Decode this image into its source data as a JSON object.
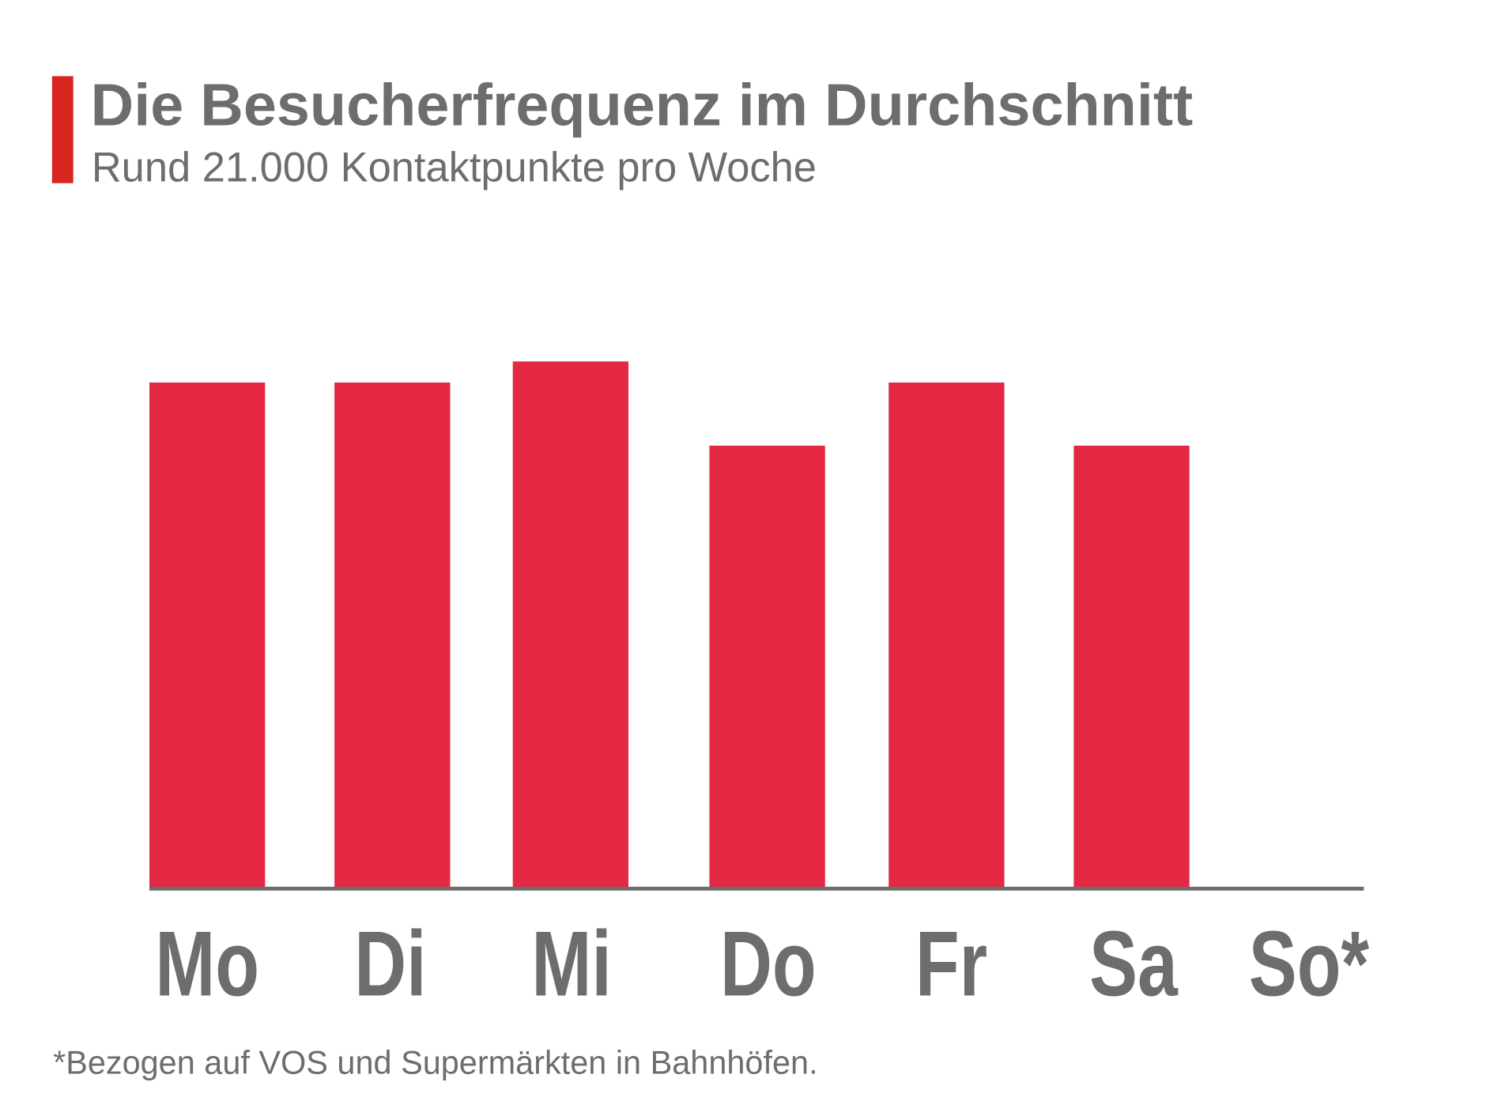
{
  "colors": {
    "accent_bar": "#d9251f",
    "bars": "#e52842",
    "text": "#6d6d6d",
    "axis": "#6d6d6d"
  },
  "chart_data": {
    "type": "bar",
    "title": "Die Besucherfrequenz im Durchschnitt",
    "subtitle": "Rund 21.000 Kontaktpunkte pro Woche",
    "categories": [
      "Mo",
      "Di",
      "Mi",
      "Do",
      "Fr",
      "Sa",
      "So*"
    ],
    "values": [
      96,
      96,
      100,
      84,
      96,
      84,
      0
    ],
    "value_note": "relative index, Mi = 100 (no axis printed)",
    "xlabel": "",
    "ylabel": "",
    "ylim": [
      0,
      100
    ],
    "grid": false,
    "legend": "none",
    "footnote": "*Bezogen auf VOS und Supermärkten in Bahnhöfen."
  }
}
